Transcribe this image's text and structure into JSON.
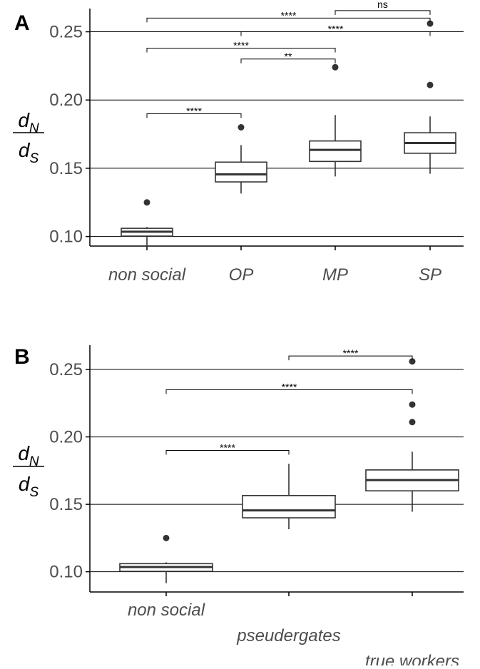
{
  "chart_data": [
    {
      "panel_label": "A",
      "type": "box",
      "ylabel": {
        "num": "d",
        "num_sub": "N",
        "den": "d",
        "den_sub": "S"
      },
      "ylim": [
        0.093,
        0.267
      ],
      "yticks": [
        "0.10",
        "0.15",
        "0.20",
        "0.25"
      ],
      "ytick_values": [
        0.1,
        0.15,
        0.2,
        0.25
      ],
      "grid": true,
      "categories": [
        "non social",
        "OP",
        "MP",
        "SP"
      ],
      "boxes": [
        {
          "q1": 0.1003,
          "median": 0.1035,
          "q3": 0.106,
          "lower": 0.0915,
          "upper": 0.107,
          "outliers": [
            0.125
          ]
        },
        {
          "q1": 0.14,
          "median": 0.1455,
          "q3": 0.1545,
          "lower": 0.1315,
          "upper": 0.167,
          "outliers": [
            0.18
          ]
        },
        {
          "q1": 0.155,
          "median": 0.1635,
          "q3": 0.17,
          "lower": 0.144,
          "upper": 0.189,
          "outliers": [
            0.224
          ]
        },
        {
          "q1": 0.161,
          "median": 0.1685,
          "q3": 0.176,
          "lower": 0.146,
          "upper": 0.188,
          "outliers": [
            0.211,
            0.256
          ]
        }
      ],
      "comparisons": [
        {
          "from": 0,
          "to": 1,
          "y": 0.19,
          "label": "****"
        },
        {
          "from": 1,
          "to": 2,
          "y": 0.23,
          "label": "**"
        },
        {
          "from": 0,
          "to": 2,
          "y": 0.238,
          "label": "****"
        },
        {
          "from": 1,
          "to": 3,
          "y": 0.25,
          "label": "****"
        },
        {
          "from": 0,
          "to": 3,
          "y": 0.26,
          "label": "****"
        },
        {
          "from": 2,
          "to": 3,
          "y": 0.2655,
          "label": "ns"
        }
      ]
    },
    {
      "panel_label": "B",
      "type": "box",
      "ylabel": {
        "num": "d",
        "num_sub": "N",
        "den": "d",
        "den_sub": "S"
      },
      "ylim": [
        0.085,
        0.268
      ],
      "yticks": [
        "0.10",
        "0.15",
        "0.20",
        "0.25"
      ],
      "ytick_values": [
        0.1,
        0.15,
        0.2,
        0.25
      ],
      "grid": true,
      "categories": [
        "non social",
        "pseudergates",
        "true workers"
      ],
      "boxes": [
        {
          "q1": 0.1003,
          "median": 0.1035,
          "q3": 0.106,
          "lower": 0.0915,
          "upper": 0.107,
          "outliers": [
            0.125
          ]
        },
        {
          "q1": 0.14,
          "median": 0.1455,
          "q3": 0.1565,
          "lower": 0.1315,
          "upper": 0.18,
          "outliers": []
        },
        {
          "q1": 0.16,
          "median": 0.168,
          "q3": 0.1755,
          "lower": 0.1445,
          "upper": 0.189,
          "outliers": [
            0.211,
            0.224,
            0.256
          ]
        }
      ],
      "comparisons": [
        {
          "from": 0,
          "to": 1,
          "y": 0.19,
          "label": "****"
        },
        {
          "from": 0,
          "to": 2,
          "y": 0.235,
          "label": "****"
        },
        {
          "from": 1,
          "to": 2,
          "y": 0.26,
          "label": "****"
        }
      ]
    }
  ]
}
